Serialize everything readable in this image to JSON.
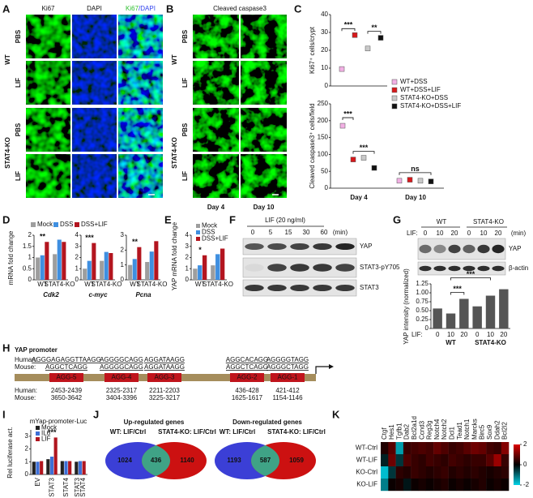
{
  "A": {
    "label": "A",
    "columns": [
      "Ki67",
      "DAPI"
    ],
    "merge": [
      "Ki67",
      "/DAPI"
    ],
    "groups": [
      {
        "name": "WT",
        "rows": [
          "PBS",
          "LIF"
        ]
      },
      {
        "name": "STAT4-KO",
        "rows": [
          "PBS",
          "LIF"
        ]
      }
    ]
  },
  "B": {
    "label": "B",
    "title": "Cleaved caspase3",
    "columns": [
      "Day 4",
      "Day 10"
    ],
    "groups": [
      {
        "name": "WT",
        "rows": [
          "PBS",
          "LIF"
        ]
      },
      {
        "name": "STAT4-KO",
        "rows": [
          "PBS",
          "LIF"
        ]
      }
    ]
  },
  "C": {
    "label": "C",
    "series": [
      {
        "name": "WT+DSS",
        "color": "#f2b0e4"
      },
      {
        "name": "WT+DSS+LIF",
        "color": "#d7191c"
      },
      {
        "name": "STAT4-KO+DSS",
        "color": "#c9c9c9"
      },
      {
        "name": "STAT4-KO+DSS+LIF",
        "color": "#111111"
      }
    ],
    "top": {
      "ylabel": "Ki67⁺ cells/crypt",
      "ylim": [
        0,
        40
      ],
      "yticks": [
        0,
        10,
        20,
        30,
        40
      ],
      "values": [
        9.5,
        28.5,
        21,
        27
      ],
      "significance": [
        "***",
        "**"
      ]
    },
    "bottom": {
      "ylabel": "Cleaved caspase3⁺ cells/field",
      "categories": [
        "Day 4",
        "Day 10"
      ],
      "ylim": [
        0,
        250
      ],
      "yticks": [
        0,
        50,
        100,
        150,
        200,
        250
      ],
      "values": [
        [
          185,
          22
        ],
        [
          85,
          25
        ],
        [
          90,
          22
        ],
        [
          60,
          20
        ]
      ],
      "significance": [
        "***",
        "***",
        "ns"
      ]
    }
  },
  "D": {
    "label": "D",
    "ylabel": "mRNA fold change",
    "series": [
      {
        "name": "Mock",
        "color": "#9e9e9e"
      },
      {
        "name": "DSS",
        "color": "#3f8fe0"
      },
      {
        "name": "DSS+LIF",
        "color": "#b3151f"
      }
    ],
    "categories": [
      "WT",
      "STAT4-KO"
    ],
    "charts": [
      {
        "title": "Cdk2",
        "ylim": [
          0,
          2
        ],
        "yticks": [
          0,
          0.5,
          1,
          1.5,
          2
        ],
        "values": [
          [
            1,
            1.15
          ],
          [
            1.1,
            1.8
          ],
          [
            1.7,
            1.7
          ]
        ],
        "significance": "**"
      },
      {
        "title": "c-myc",
        "ylim": [
          0,
          4
        ],
        "yticks": [
          0,
          1,
          2,
          3,
          4
        ],
        "values": [
          [
            1,
            1.7
          ],
          [
            1.7,
            2.5
          ],
          [
            3.3,
            2.4
          ]
        ],
        "significance": "***"
      },
      {
        "title": "Pcna",
        "ylim": [
          0,
          3
        ],
        "yticks": [
          0,
          1,
          2,
          3
        ],
        "values": [
          [
            1,
            1.2
          ],
          [
            1.4,
            1.9
          ],
          [
            2.2,
            2.6
          ]
        ],
        "significance": "**"
      }
    ]
  },
  "E": {
    "label": "E",
    "ylabel": "YAP mRNA fold change",
    "series": [
      {
        "name": "Mock",
        "color": "#9e9e9e"
      },
      {
        "name": "DSS",
        "color": "#3f8fe0"
      },
      {
        "name": "DSS+LIF",
        "color": "#b3151f"
      }
    ],
    "categories": [
      "WT",
      "STAT4-KO"
    ],
    "ylim": [
      0,
      4
    ],
    "yticks": [
      0,
      1,
      2,
      3,
      4
    ],
    "values": [
      [
        1,
        1.3
      ],
      [
        1.3,
        2.3
      ],
      [
        2.2,
        2.8
      ]
    ],
    "significance": "*"
  },
  "F": {
    "label": "F",
    "title": "LIF (20 ng/ml)",
    "lanes": [
      "0",
      "5",
      "15",
      "30",
      "60"
    ],
    "unit": "(min)",
    "rows": [
      "YAP",
      "STAT3-pY705",
      "STAT3"
    ]
  },
  "G": {
    "label": "G",
    "groups": [
      "WT",
      "STAT4-KO"
    ],
    "lif_label": "LIF:",
    "lanes": [
      "0",
      "10",
      "20",
      "0",
      "10",
      "20"
    ],
    "unit": "(min)",
    "rows": [
      "YAP",
      "β-actin"
    ],
    "chart": {
      "ylabel": "YAP intensity (normalized)",
      "color": "#555555",
      "ylim": [
        0,
        1.25
      ],
      "yticks": [
        0,
        {
          "value": 0.25,
          "label": "0.25"
        },
        {
          "value": 0.5,
          "label": "0.50"
        },
        {
          "value": 0.75,
          "label": "0.75"
        },
        {
          "value": 1,
          "label": "1.00"
        },
        {
          "value": 1.25,
          "label": "1.25"
        }
      ],
      "values": [
        0.56,
        0.42,
        0.83,
        0.62,
        0.92,
        1.1
      ],
      "significance": [
        "***",
        "***"
      ]
    }
  },
  "H": {
    "label": "H",
    "title": "YAP promoter",
    "species": [
      "Human:",
      "Mouse:"
    ],
    "sites": [
      {
        "box": "AGG-5",
        "human": "AGGGAGAGGTTAAGG",
        "mouse": "AGGCTCAGG",
        "human_pos": "2453-2439",
        "mouse_pos": "3650-3642"
      },
      {
        "box": "AGG-4",
        "human": "AGGGGCAGG",
        "mouse": "AGGGGCAGG",
        "human_pos": "2325-2317",
        "mouse_pos": "3404-3396"
      },
      {
        "box": "AGG-3",
        "human": "AGGATAAGG",
        "mouse": "AGGATAAGG",
        "human_pos": "2211-2203",
        "mouse_pos": "3225-3217"
      },
      {
        "box": "AGG-2",
        "human": "AGGCACAGG",
        "mouse": "AGGCTCAGG",
        "human_pos": "436-428",
        "mouse_pos": "1625-1617"
      },
      {
        "box": "AGG-1",
        "human": "AGGGGTAGG",
        "mouse": "AGGGCTAGG",
        "human_pos": "421-412",
        "mouse_pos": "1154-1146"
      }
    ]
  },
  "I": {
    "label": "I",
    "title": "mYap-promoter-Luc",
    "ylabel": "Rel luciferase act.",
    "series": [
      {
        "name": "Mock",
        "color": "#222222"
      },
      {
        "name": "IL6",
        "color": "#3d6fd6"
      },
      {
        "name": "LIF",
        "color": "#b0151f"
      }
    ],
    "categories": [
      "EV",
      "STAT3",
      "STAT4",
      [
        "STAT3",
        "STAT4"
      ]
    ],
    "ylim": [
      0,
      3.5
    ],
    "yticks": [
      0,
      1,
      2,
      3
    ],
    "values": [
      [
        1,
        1.2,
        1.05,
        1
      ],
      [
        1,
        1.4,
        1.05,
        1.05
      ],
      [
        1.05,
        2.9,
        1.05,
        1.05
      ]
    ],
    "significance": "***"
  },
  "J": {
    "label": "J",
    "venns": [
      {
        "title": "Up-regulated genes",
        "left": "WT: LIF/Ctrl",
        "right": "STAT4-KO: LIF/Ctrl",
        "counts": [
          1024,
          436,
          1140
        ]
      },
      {
        "title": "Down-regulated genes",
        "left": "WT: LIF/Ctrl",
        "right": "STAT4-KO: LIF/Ctrl",
        "counts": [
          1193,
          587,
          1059
        ]
      }
    ]
  },
  "K": {
    "label": "K",
    "genes": [
      "Ctgf",
      "Hes1",
      "Tgfb1",
      "Dab2",
      "Bcl2a1d",
      "Ccnd3",
      "Reg3g",
      "Notch4",
      "Notch2",
      "Dcl1",
      "Tead1",
      "Notch1",
      "Marcks",
      "Birc5",
      "Sox9",
      "Ddah2",
      "Bcl2l2"
    ],
    "rows": [
      "WT-Ctrl",
      "WT-LIF",
      "KO-Ctrl",
      "KO-LIF"
    ],
    "values": [
      [
        0.3,
        0.8,
        -1.5,
        0.5,
        0.6,
        0.7,
        0.6,
        0.9,
        0.7,
        0.5,
        0.6,
        0.8,
        1.0,
        0.9,
        0.6,
        0.5,
        1.2
      ],
      [
        -0.3,
        1.0,
        -0.5,
        0.7,
        0.5,
        0.4,
        0.6,
        0.5,
        0.4,
        0.6,
        0.5,
        0.4,
        0.5,
        0.5,
        0.8,
        1.4,
        0.5
      ],
      [
        -1.8,
        -0.5,
        0.4,
        0.3,
        0.5,
        0.4,
        0.3,
        0.4,
        0.5,
        0.3,
        0.4,
        0.3,
        0.4,
        0.3,
        0.2,
        0.3,
        0.4
      ],
      [
        -1.2,
        0.1,
        0.2,
        -0.2,
        0.1,
        0.2,
        0.1,
        0.2,
        0.3,
        0.1,
        0.2,
        0.1,
        0.2,
        0.3,
        0.1,
        0.2,
        0.1
      ]
    ],
    "scale": {
      "lim": [
        -2,
        2
      ],
      "ticks": [
        2,
        0,
        -2
      ]
    }
  }
}
